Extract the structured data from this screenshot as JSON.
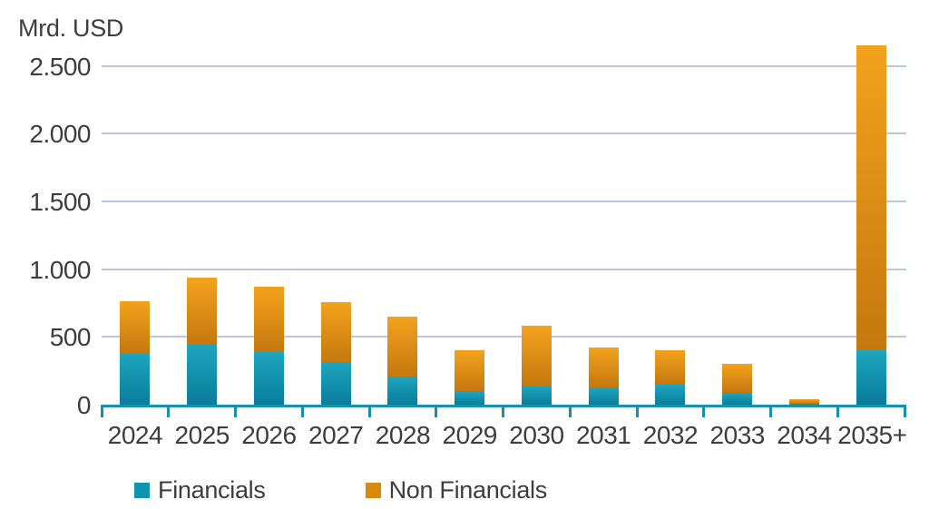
{
  "chart_data": {
    "type": "bar",
    "stacked": true,
    "title": "Mrd. USD",
    "categories": [
      "2024",
      "2025",
      "2026",
      "2027",
      "2028",
      "2029",
      "2030",
      "2031",
      "2032",
      "2033",
      "2034",
      "2035+"
    ],
    "series": [
      {
        "name": "Financials",
        "values": [
          380,
          440,
          390,
          315,
          210,
          100,
          135,
          130,
          150,
          85,
          5,
          400
        ],
        "color_top": "#1ea6be",
        "color_bottom": "#0a7d9b",
        "legend_color": "#1193ad"
      },
      {
        "name": "Non Financials",
        "values": [
          385,
          500,
          480,
          445,
          440,
          305,
          445,
          290,
          255,
          215,
          35,
          2250
        ],
        "color_top": "#f3a21d",
        "color_bottom": "#c4780e",
        "legend_color": "#d8890f"
      }
    ],
    "y_ticks": [
      0,
      500,
      1000,
      1500,
      2000,
      2500
    ],
    "y_tick_labels": [
      "0",
      "500",
      "1.000",
      "1.500",
      "2.000",
      "2.500"
    ],
    "ylim": [
      0,
      2700
    ],
    "grid": true,
    "legend_position": "bottom",
    "xlabel": "",
    "ylabel": "Mrd. USD"
  },
  "colors": {
    "axis": "#1590ae",
    "gridline": "#b9c8dc",
    "text": "#3d3d3d",
    "background": "#ffffff"
  }
}
